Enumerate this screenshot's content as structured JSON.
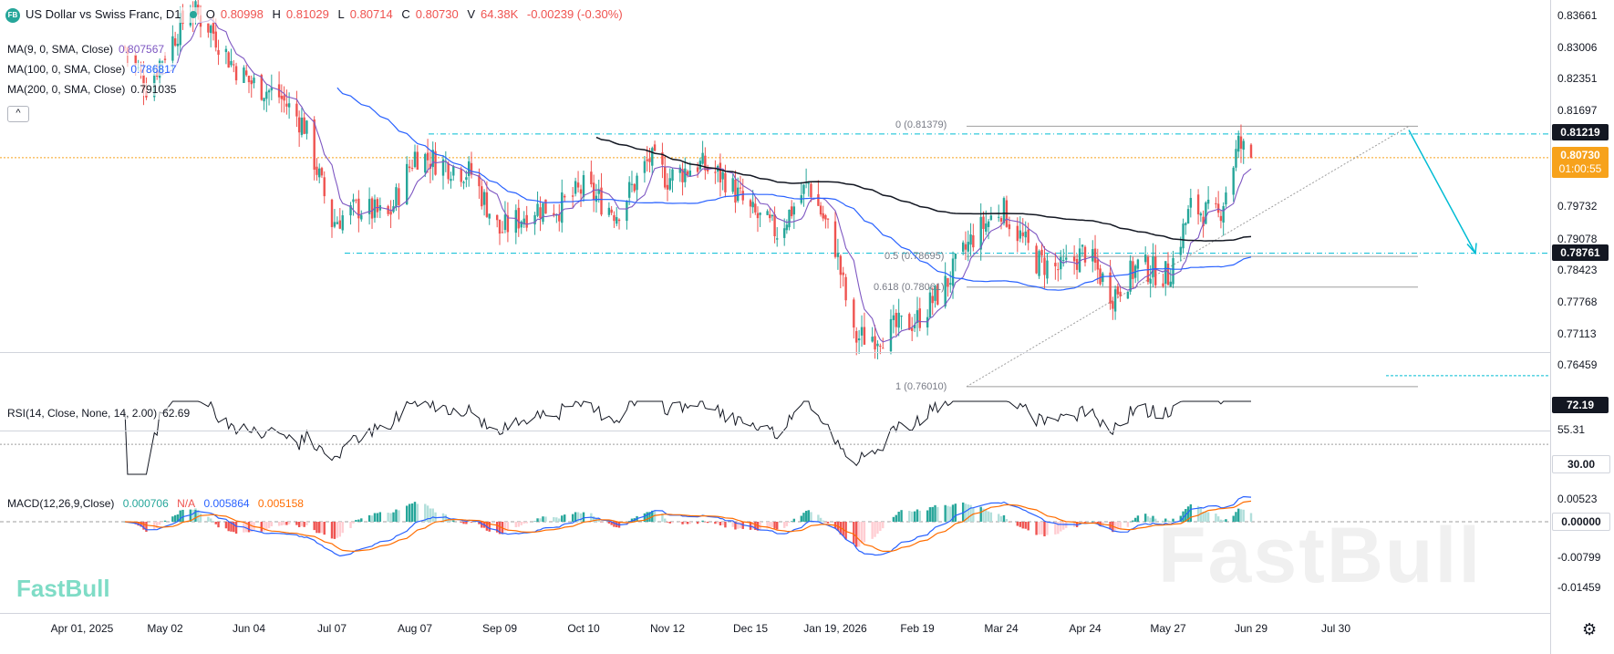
{
  "header": {
    "logo_badge": "FB",
    "symbol": "US Dollar vs Swiss Franc, D1",
    "open_label": "O",
    "open": "0.80998",
    "high_label": "H",
    "high": "0.81029",
    "low_label": "L",
    "low": "0.80714",
    "close_label": "C",
    "close": "0.80730",
    "volume_label": "V",
    "volume": "64.38K",
    "change": "-0.00239 (-0.30%)"
  },
  "indicators": {
    "ma9_label": "MA(9, 0, SMA, Close)",
    "ma9_value": "0.807567",
    "ma100_label": "MA(100, 0, SMA, Close)",
    "ma100_value": "0.786817",
    "ma200_label": "MA(200, 0, SMA, Close)",
    "ma200_value": "0.791035",
    "collapse_icon": "chevron-up-icon",
    "collapse_glyph": "^",
    "rsi_label": "RSI(14, Close, None, 14, 2.00)",
    "rsi_value": "62.69",
    "macd_label": "MACD(12,26,9,Close)",
    "macd_hist": "0.000706",
    "macd_na": "N/A",
    "macd_line": "0.005864",
    "macd_signal": "0.005158"
  },
  "price_axis": {
    "ticks": [
      "0.83661",
      "0.83006",
      "0.82351",
      "0.81697",
      "0.79732",
      "0.79078",
      "0.78423",
      "0.77768",
      "0.77113",
      "0.76459"
    ],
    "last_high_tag": "0.81219",
    "current_price": "0.80730",
    "countdown": "01:00:55",
    "support_tag": "0.78761"
  },
  "rsi_axis": {
    "upper_tag": "72.19",
    "mid": "55.31",
    "lower_tag": "30.00"
  },
  "macd_axis": {
    "ticks": [
      "0.00523",
      "-0.00799",
      "-0.01459"
    ],
    "zero_tag": "0.00000"
  },
  "time_axis": {
    "ticks": [
      "Apr 01, 2025",
      "May 02",
      "Jun 04",
      "Jul 07",
      "Aug 07",
      "Sep 09",
      "Oct 10",
      "Nov 12",
      "Dec 15",
      "Jan 19, 2026",
      "Feb 19",
      "Mar 24",
      "Apr 24",
      "May 27",
      "Jun 29",
      "Jul 30"
    ]
  },
  "fib": {
    "level_0": "0 (0.81379)",
    "level_05": "0.5 (0.78695)",
    "level_0618": "0.618 (0.78061)",
    "level_1": "1 (0.76010)"
  },
  "watermark": "FastBull",
  "brand": "FastBull",
  "settings_icon": "gear-icon",
  "settings_glyph": "⚙",
  "colors": {
    "up": "#26a69a",
    "down": "#ef5350",
    "ma9": "#7e57c2",
    "ma100": "#2962ff",
    "ma200": "#131722",
    "macd": "#2962ff",
    "signal": "#ff6d00",
    "fib": "#00bcd4",
    "current": "#f7a21b"
  },
  "chart_data": {
    "type": "candlestick",
    "x_ticks": [
      "Apr 01, 2025",
      "May 02",
      "Jun 04",
      "Jul 07",
      "Aug 07",
      "Sep 09",
      "Oct 10",
      "Nov 12",
      "Dec 15",
      "Jan 19, 2026",
      "Feb 19",
      "Mar 24",
      "Apr 24",
      "May 27",
      "Jun 29",
      "Jul 30"
    ],
    "ohlc_last": {
      "open": 0.80998,
      "high": 0.81029,
      "low": 0.80714,
      "close": 0.8073
    },
    "close_path": [
      {
        "x": "2025-04-17",
        "y": 0.83
      },
      {
        "x": "2025-04-25",
        "y": 0.822
      },
      {
        "x": "2025-05-02",
        "y": 0.829
      },
      {
        "x": "2025-05-12",
        "y": 0.838
      },
      {
        "x": "2025-05-20",
        "y": 0.834
      },
      {
        "x": "2025-05-28",
        "y": 0.827
      },
      {
        "x": "2025-06-04",
        "y": 0.823
      },
      {
        "x": "2025-06-16",
        "y": 0.82
      },
      {
        "x": "2025-06-26",
        "y": 0.814
      },
      {
        "x": "2025-07-07",
        "y": 0.794
      },
      {
        "x": "2025-07-17",
        "y": 0.797
      },
      {
        "x": "2025-07-28",
        "y": 0.795
      },
      {
        "x": "2025-08-07",
        "y": 0.808
      },
      {
        "x": "2025-08-19",
        "y": 0.806
      },
      {
        "x": "2025-08-29",
        "y": 0.804
      },
      {
        "x": "2025-09-09",
        "y": 0.792
      },
      {
        "x": "2025-09-22",
        "y": 0.797
      },
      {
        "x": "2025-10-01",
        "y": 0.797
      },
      {
        "x": "2025-10-10",
        "y": 0.801
      },
      {
        "x": "2025-10-23",
        "y": 0.796
      },
      {
        "x": "2025-11-05",
        "y": 0.807
      },
      {
        "x": "2025-11-12",
        "y": 0.803
      },
      {
        "x": "2025-11-24",
        "y": 0.806
      },
      {
        "x": "2025-12-05",
        "y": 0.803
      },
      {
        "x": "2025-12-15",
        "y": 0.796
      },
      {
        "x": "2025-12-26",
        "y": 0.792
      },
      {
        "x": "2026-01-08",
        "y": 0.802
      },
      {
        "x": "2026-01-19",
        "y": 0.789
      },
      {
        "x": "2026-01-26",
        "y": 0.77
      },
      {
        "x": "2026-02-06",
        "y": 0.771
      },
      {
        "x": "2026-02-19",
        "y": 0.774
      },
      {
        "x": "2026-03-02",
        "y": 0.781
      },
      {
        "x": "2026-03-13",
        "y": 0.791
      },
      {
        "x": "2026-03-24",
        "y": 0.797
      },
      {
        "x": "2026-04-06",
        "y": 0.786
      },
      {
        "x": "2026-04-15",
        "y": 0.784
      },
      {
        "x": "2026-04-24",
        "y": 0.788
      },
      {
        "x": "2026-05-05",
        "y": 0.779
      },
      {
        "x": "2026-05-15",
        "y": 0.785
      },
      {
        "x": "2026-05-27",
        "y": 0.783
      },
      {
        "x": "2026-06-05",
        "y": 0.797
      },
      {
        "x": "2026-06-16",
        "y": 0.795
      },
      {
        "x": "2026-06-24",
        "y": 0.81
      },
      {
        "x": "2026-06-29",
        "y": 0.8073
      }
    ],
    "ma9": {
      "last": 0.807567
    },
    "ma100": {
      "last": 0.786817
    },
    "ma200": {
      "last": 0.791035
    },
    "levels": {
      "resistance": 0.81219,
      "current": 0.8073,
      "support": 0.78761
    },
    "fibonacci": [
      {
        "level": 0,
        "price": 0.81379
      },
      {
        "level": 0.5,
        "price": 0.78695
      },
      {
        "level": 0.618,
        "price": 0.78061
      },
      {
        "level": 1,
        "price": 0.7601
      }
    ],
    "price_axis_ticks": [
      0.83661,
      0.83006,
      0.82351,
      0.81697,
      0.79732,
      0.79078,
      0.78423,
      0.77768,
      0.77113,
      0.76459
    ],
    "rsi": {
      "value": 62.69,
      "max_marker": 72.19,
      "lower": 30.0,
      "mid": 55.31
    },
    "macd": {
      "hist": 0.000706,
      "macd": 0.005864,
      "signal": 0.005158,
      "ticks": [
        0.00523,
        0.0,
        -0.00799,
        -0.01459
      ]
    }
  }
}
